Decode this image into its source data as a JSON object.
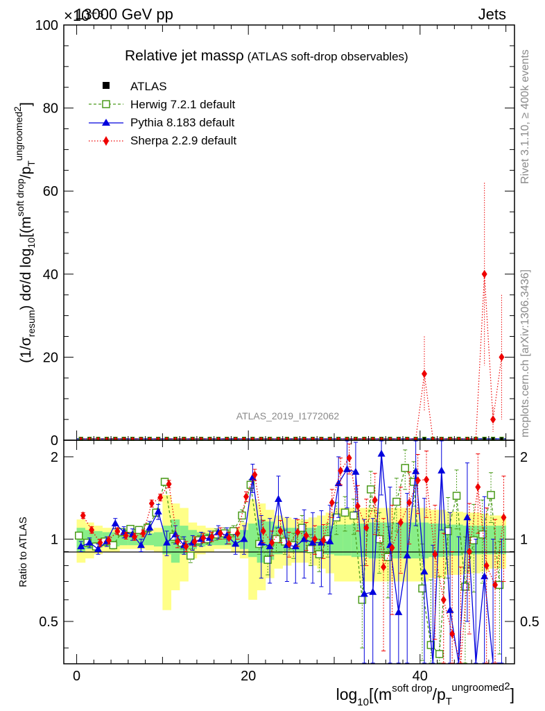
{
  "header": {
    "exp_scale": "×10⁻⁶",
    "energy": "13000 GeV pp",
    "process": "Jets"
  },
  "side": {
    "rivet": "Rivet 3.1.10, ≥ 400k events",
    "mcplots": "mcplots.cern.ch [arXiv:1306.3436]"
  },
  "chart_data": [
    {
      "type": "line",
      "title": "Relative jet mass ρ (ATLAS soft-drop observables)",
      "title_main": "Relative jet mass",
      "title_rho": "ρ",
      "title_sub": " (ATLAS soft-drop observables)",
      "ylabel": "(1/σ_resum) dσ/d log10[(m^soft drop / p_T^ungroomed)^2]",
      "ylabel_parts": [
        "(1/σ",
        "resum",
        ") dσ/d log",
        "10",
        "[(m",
        "soft drop",
        "/p",
        "T",
        "ungroomed",
        "2",
        "]"
      ],
      "analysis_id": "ATLAS_2019_I1772062",
      "ylim": [
        0,
        100
      ],
      "yticks": [
        "0",
        "20",
        "40",
        "60",
        "80",
        "100"
      ],
      "xlim": [
        -1.5,
        51
      ],
      "legend": [
        {
          "name": "ATLAS",
          "marker": "square-filled",
          "color": "#000000"
        },
        {
          "name": "Herwig 7.2.1 default",
          "marker": "square-open",
          "color": "#4a9a1a"
        },
        {
          "name": "Pythia 8.183 default",
          "marker": "triangle",
          "color": "#0000dd"
        },
        {
          "name": "Sherpa 2.2.9 default",
          "marker": "diamond",
          "color": "#ee0000"
        }
      ],
      "sherpa_points": [
        {
          "x": 40.5,
          "y": 16,
          "err": 9
        },
        {
          "x": 47.5,
          "y": 40,
          "err": 22
        },
        {
          "x": 48.5,
          "y": 5,
          "err": 3
        },
        {
          "x": 49.5,
          "y": 20,
          "err": 15
        }
      ]
    },
    {
      "type": "line",
      "ylabel": "Ratio to ATLAS",
      "xlabel": "log10[(m^soft drop / p_T^ungroomed)^2]",
      "xlabel_parts": [
        "log",
        "10",
        "[(m",
        "soft drop",
        "/p",
        "T",
        "ungroomed",
        "2",
        "]"
      ],
      "xlim": [
        -1.5,
        51
      ],
      "ylim": [
        0.35,
        2.3
      ],
      "xticks": [
        "0",
        "20",
        "40"
      ],
      "yticks": [
        "0.5",
        "1",
        "2"
      ],
      "band_inner": [
        0.1,
        0.08,
        0.07,
        0.06,
        0.06,
        0.05,
        0.05,
        0.05,
        0.05,
        0.06,
        0.12,
        0.18,
        0.12,
        0.08,
        0.06,
        0.05,
        0.05,
        0.05,
        0.06,
        0.08,
        0.14,
        0.18,
        0.16,
        0.12,
        0.1,
        0.1,
        0.1,
        0.1,
        0.12,
        0.12,
        0.13,
        0.13,
        0.14,
        0.14,
        0.15,
        0.15,
        0.15,
        0.15,
        0.15,
        0.15,
        0.15,
        0.14,
        0.14,
        0.13,
        0.13,
        0.12,
        0.12,
        0.12,
        0.12,
        0.12
      ],
      "band_outer": [
        0.18,
        0.15,
        0.12,
        0.1,
        0.1,
        0.08,
        0.08,
        0.08,
        0.09,
        0.1,
        0.45,
        0.35,
        0.3,
        0.15,
        0.12,
        0.1,
        0.08,
        0.08,
        0.1,
        0.15,
        0.4,
        0.35,
        0.28,
        0.22,
        0.2,
        0.18,
        0.18,
        0.2,
        0.22,
        0.25,
        0.3,
        0.3,
        0.3,
        0.3,
        0.3,
        0.3,
        0.3,
        0.3,
        0.3,
        0.3,
        0.3,
        0.28,
        0.28,
        0.26,
        0.26,
        0.25,
        0.25,
        0.24,
        0.22,
        0.22
      ],
      "series": [
        {
          "name": "Herwig 7.2.1 default",
          "values": [
            1.03,
            0.97,
            0.94,
            0.98,
            0.95,
            1.06,
            1.09,
            1.08,
            1.1,
            1.25,
            1.62,
            1.02,
            0.97,
            0.87,
            0.99,
            1.0,
            1.04,
            1.05,
            1.07,
            1.22,
            1.58,
            0.96,
            0.84,
            1.0,
            0.98,
            0.95,
            1.1,
            0.92,
            0.88,
            1.0,
            1.2,
            1.25,
            1.22,
            0.6,
            1.52,
            1.0,
            0.86,
            1.37,
            1.82,
            1.62,
            0.66,
            0.41,
            0.38,
            1.07,
            1.44,
            0.67,
            0.99,
            1.04,
            1.45,
            0.68
          ],
          "errors": [
            0.03,
            0.03,
            0.03,
            0.03,
            0.03,
            0.03,
            0.03,
            0.03,
            0.04,
            0.04,
            0.05,
            0.05,
            0.05,
            0.05,
            0.04,
            0.04,
            0.05,
            0.05,
            0.05,
            0.06,
            0.07,
            0.08,
            0.1,
            0.1,
            0.1,
            0.1,
            0.12,
            0.12,
            0.12,
            0.14,
            0.16,
            0.18,
            0.18,
            0.2,
            0.25,
            0.25,
            0.25,
            0.3,
            0.3,
            0.3,
            0.3,
            0.3,
            0.35,
            0.35,
            0.35,
            0.35,
            0.35,
            0.35,
            0.3,
            0.3
          ]
        },
        {
          "name": "Pythia 8.183 default",
          "values": [
            0.94,
            0.97,
            0.92,
            0.98,
            1.14,
            1.06,
            1.04,
            0.95,
            1.1,
            1.26,
            0.97,
            1.04,
            0.95,
            0.97,
            1.0,
            1.01,
            1.06,
            1.03,
            0.96,
            1.0,
            1.68,
            0.97,
            0.94,
            1.4,
            0.95,
            0.94,
            1.0,
            0.97,
            0.97,
            0.98,
            1.6,
            1.8,
            1.76,
            0.63,
            0.64,
            2.05,
            0.95,
            0.54,
            0.87,
            1.77,
            0.76,
            0.3,
            1.78,
            0.55,
            0.32,
            1.2,
            0.3,
            0.73,
            0.3,
            0.3
          ],
          "errors": [
            0.04,
            0.04,
            0.04,
            0.04,
            0.05,
            0.05,
            0.05,
            0.05,
            0.06,
            0.08,
            0.1,
            0.08,
            0.07,
            0.06,
            0.06,
            0.06,
            0.06,
            0.07,
            0.08,
            0.12,
            0.2,
            0.25,
            0.25,
            0.3,
            0.25,
            0.25,
            0.28,
            0.28,
            0.3,
            0.35,
            0.4,
            0.5,
            0.5,
            0.55,
            0.55,
            0.6,
            0.6,
            0.6,
            0.6,
            0.65,
            0.65,
            0.65,
            0.7,
            0.7,
            0.7,
            0.7,
            0.7,
            0.7,
            0.7,
            0.7
          ]
        },
        {
          "name": "Sherpa 2.2.9 default",
          "values": [
            1.22,
            1.08,
            0.97,
            0.99,
            1.07,
            1.03,
            1.02,
            1.05,
            1.35,
            1.42,
            1.59,
            0.98,
            0.94,
            0.98,
            1.01,
            1.02,
            1.05,
            1.01,
            1.05,
            1.43,
            1.72,
            1.07,
            0.97,
            1.07,
            0.96,
            1.06,
            1.03,
            1.0,
            0.99,
            1.36,
            1.78,
            1.98,
            1.32,
            1.1,
            1.39,
            0.79,
            0.93,
            1.15,
            1.36,
            1.64,
            1.65,
            0.88,
            0.6,
            0.45,
            0.34,
            0.9,
            1.55,
            0.8,
            0.68,
            1.2
          ],
          "errors": [
            0.03,
            0.03,
            0.03,
            0.03,
            0.03,
            0.03,
            0.03,
            0.03,
            0.04,
            0.04,
            0.05,
            0.05,
            0.04,
            0.04,
            0.04,
            0.04,
            0.05,
            0.05,
            0.05,
            0.06,
            0.08,
            0.1,
            0.1,
            0.1,
            0.1,
            0.12,
            0.12,
            0.12,
            0.14,
            0.16,
            0.2,
            0.25,
            0.25,
            0.3,
            0.35,
            0.4,
            0.4,
            0.4,
            0.4,
            0.4,
            0.45,
            0.45,
            0.45,
            0.45,
            0.45,
            0.45,
            0.5,
            0.5,
            0.5,
            0.5
          ]
        }
      ]
    }
  ]
}
